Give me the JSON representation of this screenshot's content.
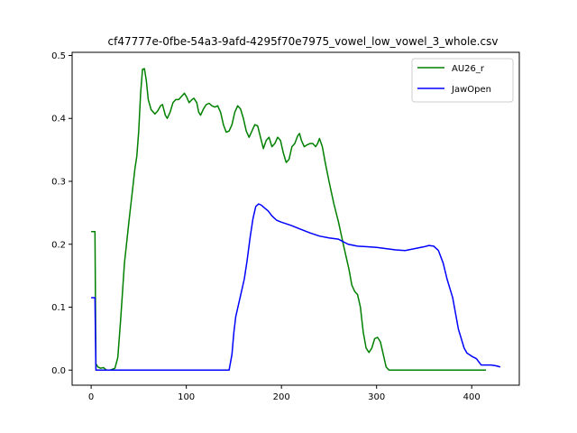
{
  "chart_data": {
    "type": "line",
    "title": "cf47777e-0fbe-54a3-9afd-4295f70e7975_vowel_low_vowel_3_whole.csv",
    "xlabel": "",
    "ylabel": "",
    "xlim": [
      -20,
      450
    ],
    "ylim": [
      -0.024,
      0.505
    ],
    "xticks": [
      0,
      100,
      200,
      300,
      400
    ],
    "yticks": [
      0.0,
      0.1,
      0.2,
      0.3,
      0.4,
      0.5
    ],
    "xtick_labels": [
      "0",
      "100",
      "200",
      "300",
      "400"
    ],
    "ytick_labels": [
      "0.0",
      "0.1",
      "0.2",
      "0.3",
      "0.4",
      "0.5"
    ],
    "grid": false,
    "legend_position": "top-right",
    "series": [
      {
        "name": "AU26_r",
        "color": "#008000",
        "points": [
          [
            0,
            0.22
          ],
          [
            3,
            0.22
          ],
          [
            4,
            0.22
          ],
          [
            5,
            0.01
          ],
          [
            7,
            0.005
          ],
          [
            10,
            0.003
          ],
          [
            13,
            0.004
          ],
          [
            16,
            0.0
          ],
          [
            20,
            0.0
          ],
          [
            25,
            0.003
          ],
          [
            28,
            0.02
          ],
          [
            31,
            0.08
          ],
          [
            35,
            0.17
          ],
          [
            40,
            0.24
          ],
          [
            43,
            0.28
          ],
          [
            46,
            0.32
          ],
          [
            48,
            0.34
          ],
          [
            50,
            0.38
          ],
          [
            52,
            0.44
          ],
          [
            54,
            0.478
          ],
          [
            56,
            0.479
          ],
          [
            58,
            0.46
          ],
          [
            60,
            0.43
          ],
          [
            63,
            0.414
          ],
          [
            67,
            0.407
          ],
          [
            70,
            0.412
          ],
          [
            73,
            0.42
          ],
          [
            75,
            0.422
          ],
          [
            78,
            0.405
          ],
          [
            80,
            0.4
          ],
          [
            83,
            0.41
          ],
          [
            86,
            0.425
          ],
          [
            89,
            0.43
          ],
          [
            92,
            0.43
          ],
          [
            95,
            0.435
          ],
          [
            98,
            0.44
          ],
          [
            100,
            0.435
          ],
          [
            103,
            0.425
          ],
          [
            106,
            0.43
          ],
          [
            108,
            0.432
          ],
          [
            111,
            0.425
          ],
          [
            113,
            0.41
          ],
          [
            115,
            0.405
          ],
          [
            118,
            0.415
          ],
          [
            121,
            0.422
          ],
          [
            124,
            0.424
          ],
          [
            127,
            0.42
          ],
          [
            130,
            0.418
          ],
          [
            133,
            0.42
          ],
          [
            136,
            0.41
          ],
          [
            139,
            0.39
          ],
          [
            142,
            0.378
          ],
          [
            145,
            0.38
          ],
          [
            148,
            0.39
          ],
          [
            151,
            0.41
          ],
          [
            154,
            0.42
          ],
          [
            157,
            0.415
          ],
          [
            160,
            0.4
          ],
          [
            163,
            0.38
          ],
          [
            166,
            0.37
          ],
          [
            169,
            0.38
          ],
          [
            172,
            0.39
          ],
          [
            175,
            0.388
          ],
          [
            178,
            0.37
          ],
          [
            181,
            0.352
          ],
          [
            184,
            0.365
          ],
          [
            187,
            0.37
          ],
          [
            190,
            0.355
          ],
          [
            193,
            0.36
          ],
          [
            196,
            0.37
          ],
          [
            199,
            0.365
          ],
          [
            202,
            0.345
          ],
          [
            205,
            0.33
          ],
          [
            208,
            0.335
          ],
          [
            211,
            0.355
          ],
          [
            214,
            0.36
          ],
          [
            217,
            0.372
          ],
          [
            219,
            0.376
          ],
          [
            221,
            0.365
          ],
          [
            224,
            0.355
          ],
          [
            227,
            0.358
          ],
          [
            230,
            0.36
          ],
          [
            233,
            0.36
          ],
          [
            236,
            0.355
          ],
          [
            238,
            0.36
          ],
          [
            240,
            0.368
          ],
          [
            243,
            0.355
          ],
          [
            246,
            0.33
          ],
          [
            250,
            0.3
          ],
          [
            255,
            0.265
          ],
          [
            260,
            0.235
          ],
          [
            265,
            0.2
          ],
          [
            268,
            0.18
          ],
          [
            271,
            0.16
          ],
          [
            274,
            0.135
          ],
          [
            277,
            0.125
          ],
          [
            280,
            0.12
          ],
          [
            283,
            0.1
          ],
          [
            286,
            0.06
          ],
          [
            289,
            0.035
          ],
          [
            292,
            0.028
          ],
          [
            295,
            0.035
          ],
          [
            298,
            0.05
          ],
          [
            301,
            0.052
          ],
          [
            304,
            0.045
          ],
          [
            307,
            0.025
          ],
          [
            310,
            0.005
          ],
          [
            313,
            0.0
          ],
          [
            320,
            0.0
          ],
          [
            350,
            0.0
          ],
          [
            380,
            0.0
          ],
          [
            415,
            0.0
          ]
        ]
      },
      {
        "name": "JawOpen",
        "color": "#0000ff",
        "points": [
          [
            0,
            0.115
          ],
          [
            3,
            0.115
          ],
          [
            4,
            0.115
          ],
          [
            5,
            0.0
          ],
          [
            10,
            0.0
          ],
          [
            50,
            0.0
          ],
          [
            100,
            0.0
          ],
          [
            145,
            0.0
          ],
          [
            148,
            0.025
          ],
          [
            150,
            0.06
          ],
          [
            152,
            0.085
          ],
          [
            155,
            0.105
          ],
          [
            158,
            0.125
          ],
          [
            161,
            0.145
          ],
          [
            164,
            0.175
          ],
          [
            167,
            0.21
          ],
          [
            170,
            0.24
          ],
          [
            173,
            0.26
          ],
          [
            176,
            0.264
          ],
          [
            179,
            0.262
          ],
          [
            182,
            0.258
          ],
          [
            186,
            0.253
          ],
          [
            190,
            0.245
          ],
          [
            195,
            0.238
          ],
          [
            200,
            0.235
          ],
          [
            210,
            0.23
          ],
          [
            220,
            0.224
          ],
          [
            230,
            0.218
          ],
          [
            240,
            0.213
          ],
          [
            250,
            0.21
          ],
          [
            260,
            0.208
          ],
          [
            270,
            0.2
          ],
          [
            280,
            0.197
          ],
          [
            290,
            0.196
          ],
          [
            300,
            0.195
          ],
          [
            310,
            0.193
          ],
          [
            320,
            0.191
          ],
          [
            330,
            0.19
          ],
          [
            340,
            0.193
          ],
          [
            350,
            0.196
          ],
          [
            355,
            0.198
          ],
          [
            360,
            0.197
          ],
          [
            365,
            0.19
          ],
          [
            370,
            0.17
          ],
          [
            374,
            0.145
          ],
          [
            377,
            0.13
          ],
          [
            380,
            0.115
          ],
          [
            383,
            0.09
          ],
          [
            386,
            0.065
          ],
          [
            389,
            0.05
          ],
          [
            392,
            0.035
          ],
          [
            395,
            0.027
          ],
          [
            400,
            0.022
          ],
          [
            405,
            0.018
          ],
          [
            410,
            0.008
          ],
          [
            415,
            0.008
          ],
          [
            420,
            0.008
          ],
          [
            425,
            0.007
          ],
          [
            430,
            0.005
          ]
        ]
      }
    ]
  }
}
